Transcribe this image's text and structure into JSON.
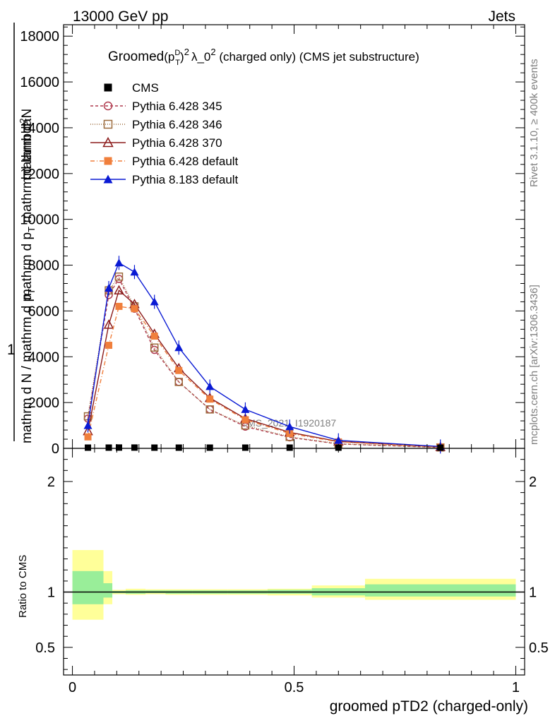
{
  "header": {
    "left": "13000 GeV pp",
    "right": "Jets"
  },
  "side_labels": {
    "rivet": "Rivet 3.1.10, ≥ 400k events",
    "mcplots": "mcplots.cern.ch [arXiv:1306.3436]"
  },
  "watermark": "CMS_2021_I1920187",
  "title": {
    "main": "Groomed",
    "p": "p",
    "D": "D",
    "T": "T",
    "two": "2",
    "lambda": "λ_0",
    "lambda_sup": "2",
    "tail": " (charged only) (CMS jet substructure)"
  },
  "y_label": {
    "line1": "mathrm d",
    "line1_sup": "2",
    "line1_tail": "N",
    "line2": "mathrm d p",
    "line2_sub": "T",
    "line2_tail": " mathrm d lambda",
    "one": "1",
    "line3": "mathrm d N / mathrm d p",
    "line3_sub": "T"
  },
  "ratio_label": "Ratio to CMS",
  "x_label": "groomed pTD2 (charged-only)",
  "chart_data": [
    {
      "type": "line",
      "panel": "main",
      "xlim": [
        -0.02,
        1.02
      ],
      "ylim": [
        0,
        18500
      ],
      "y_ticks": [
        0,
        2000,
        4000,
        6000,
        8000,
        10000,
        12000,
        14000,
        16000,
        18000
      ],
      "y_tick_labels": [
        "0",
        "2000",
        "4000",
        "6000",
        "8000",
        "10000",
        "12000",
        "14000",
        "16000",
        "18000"
      ],
      "x_ticks": [
        0,
        0.5,
        1
      ],
      "legend": "top-left",
      "series": [
        {
          "name": "CMS",
          "color": "#000000",
          "marker": "square",
          "dash": "none",
          "x": [
            0.035,
            0.082,
            0.105,
            0.14,
            0.185,
            0.24,
            0.31,
            0.39,
            0.49,
            0.6,
            0.83
          ],
          "y": [
            25,
            32,
            35,
            34,
            28,
            22,
            14,
            8,
            4,
            2,
            1
          ]
        },
        {
          "name": "Pythia 6.428 345",
          "color": "#b03a4e",
          "marker": "circle-open",
          "dash": "4,3",
          "x": [
            0.035,
            0.082,
            0.105,
            0.14,
            0.185,
            0.24,
            0.31,
            0.39,
            0.49,
            0.6,
            0.83
          ],
          "y": [
            1300,
            6700,
            7400,
            6100,
            4300,
            2900,
            1700,
            950,
            480,
            190,
            40
          ]
        },
        {
          "name": "Pythia 6.428 346",
          "color": "#9c6b3c",
          "marker": "square-open",
          "dash": "1,2",
          "x": [
            0.035,
            0.082,
            0.105,
            0.14,
            0.185,
            0.24,
            0.31,
            0.39,
            0.49,
            0.6,
            0.83
          ],
          "y": [
            1400,
            6900,
            7500,
            6200,
            4400,
            2900,
            1700,
            1000,
            500,
            200,
            40
          ]
        },
        {
          "name": "Pythia 6.428 370",
          "color": "#8b1a1a",
          "marker": "triangle-open",
          "dash": "none",
          "x": [
            0.035,
            0.082,
            0.105,
            0.14,
            0.185,
            0.24,
            0.31,
            0.39,
            0.49,
            0.6,
            0.83
          ],
          "y": [
            750,
            5400,
            6900,
            6300,
            5000,
            3500,
            2200,
            1300,
            700,
            300,
            60
          ]
        },
        {
          "name": "Pythia 6.428 default",
          "color": "#f07f3c",
          "marker": "square-filled",
          "dash": "6,3,1,3",
          "x": [
            0.035,
            0.082,
            0.105,
            0.14,
            0.185,
            0.24,
            0.31,
            0.39,
            0.49,
            0.6,
            0.83
          ],
          "y": [
            500,
            4500,
            6200,
            6100,
            4900,
            3400,
            2150,
            1250,
            650,
            280,
            55
          ]
        },
        {
          "name": "Pythia 8.183 default",
          "color": "#0a1ad4",
          "marker": "triangle-filled",
          "dash": "none",
          "x": [
            0.035,
            0.082,
            0.105,
            0.14,
            0.185,
            0.24,
            0.31,
            0.39,
            0.49,
            0.6,
            0.83
          ],
          "y": [
            1000,
            7000,
            8100,
            7700,
            6400,
            4400,
            2700,
            1700,
            950,
            350,
            80
          ]
        }
      ]
    },
    {
      "type": "area",
      "panel": "ratio",
      "ylabel": "Ratio to CMS",
      "xlabel": "groomed pTD2 (charged-only)",
      "xlim": [
        -0.02,
        1.02
      ],
      "ylim": [
        0.25,
        2.3
      ],
      "y_ticks": [
        0.5,
        1,
        2
      ],
      "y_tick_labels": [
        "0.5",
        "1",
        "2"
      ],
      "x_ticks": [
        0,
        0.5,
        1
      ],
      "x_tick_labels": [
        "0",
        "0.5",
        "1"
      ],
      "bin_edges": [
        0,
        0.07,
        0.09,
        0.12,
        0.165,
        0.21,
        0.27,
        0.35,
        0.44,
        0.54,
        0.66,
        1.0
      ],
      "band_outer_low": [
        0.75,
        0.89,
        0.98,
        0.975,
        0.98,
        0.975,
        0.975,
        0.975,
        0.97,
        0.95,
        0.93
      ],
      "band_outer_high": [
        1.38,
        1.19,
        1.02,
        1.03,
        1.025,
        1.025,
        1.025,
        1.025,
        1.03,
        1.06,
        1.12
      ],
      "band_inner_low": [
        0.89,
        0.95,
        0.99,
        0.985,
        0.99,
        0.985,
        0.985,
        0.985,
        0.985,
        0.97,
        0.96
      ],
      "band_inner_high": [
        1.19,
        1.08,
        1.01,
        1.015,
        1.015,
        1.015,
        1.015,
        1.015,
        1.02,
        1.035,
        1.07
      ],
      "colors": {
        "outer": "#ffff99",
        "inner": "#99ee99"
      }
    }
  ]
}
